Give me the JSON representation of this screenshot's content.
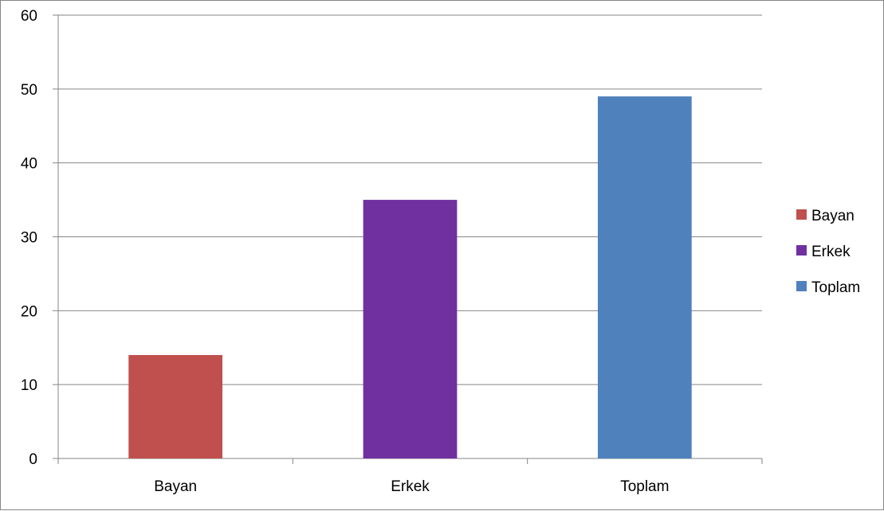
{
  "chart_data": {
    "type": "bar",
    "title": "",
    "xlabel": "",
    "ylabel": "",
    "categories": [
      "Bayan",
      "Erkek",
      "Toplam"
    ],
    "series": [
      {
        "name": "Bayan",
        "values": [
          14,
          null,
          null
        ],
        "color": "#c0504d"
      },
      {
        "name": "Erkek",
        "values": [
          null,
          35,
          null
        ],
        "color": "#7030a0"
      },
      {
        "name": "Toplam",
        "values": [
          null,
          null,
          49
        ],
        "color": "#4f81bd"
      }
    ],
    "ylim": [
      0,
      60
    ],
    "yticks": [
      "0",
      "10",
      "20",
      "30",
      "40",
      "50",
      "60"
    ],
    "grid": true,
    "legend_position": "right"
  }
}
